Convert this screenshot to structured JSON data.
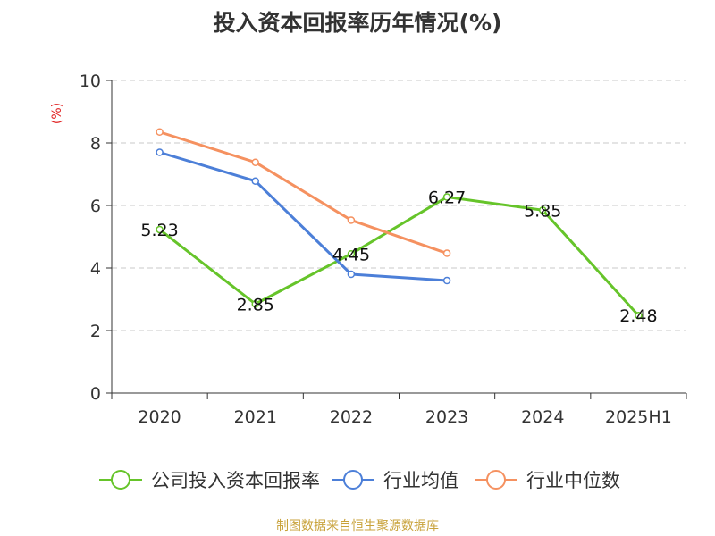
{
  "chart_data": {
    "type": "line",
    "title": "投入资本回报率历年情况(%)",
    "ylabel": "(%)",
    "xlabel": "",
    "categories": [
      "2020",
      "2021",
      "2022",
      "2023",
      "2024",
      "2025H1"
    ],
    "ylim": [
      0,
      10
    ],
    "yticks": [
      0,
      2,
      4,
      6,
      8,
      10
    ],
    "grid": true,
    "legend_position": "bottom",
    "series": [
      {
        "name": "公司投入资本回报率",
        "color": "#66c42a",
        "values": [
          5.23,
          2.85,
          4.45,
          6.27,
          5.85,
          2.48
        ],
        "labels": [
          "5.23",
          "2.85",
          "4.45",
          "6.27",
          "5.85",
          "2.48"
        ],
        "show_labels": true
      },
      {
        "name": "行业均值",
        "color": "#4c7fd8",
        "values": [
          7.7,
          6.78,
          3.8,
          3.6,
          null,
          null
        ],
        "show_labels": false
      },
      {
        "name": "行业中位数",
        "color": "#f59160",
        "values": [
          8.35,
          7.38,
          5.53,
          4.47,
          null,
          null
        ],
        "show_labels": false
      }
    ],
    "source": "制图数据来自恒生聚源数据库"
  }
}
